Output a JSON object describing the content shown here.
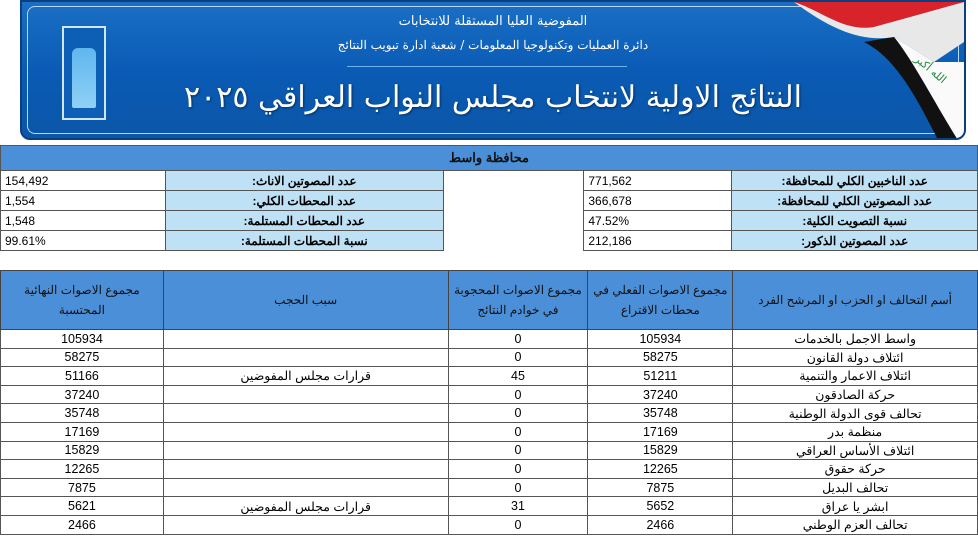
{
  "banner": {
    "org_name": "المفوضية العليا المستقلة للانتخابات",
    "department": "دائرة العمليات وتكنولوجيا المعلومات / شعبة ادارة تبويب النتائج",
    "title": "النتائج الاولية لانتخاب مجلس النواب العراقي ٢٠٢٥",
    "flag_text": "الله أكبر",
    "colors": {
      "primary": "#0a5bb5",
      "header_fill": "#4a8fd8",
      "label_fill": "#bfe1f5"
    }
  },
  "summary": {
    "province": "محافظة واسط",
    "rows": [
      {
        "r_label": "عدد الناخبين الكلي للمحافظة:",
        "r_value": "771,562",
        "l_label": "عدد المصوتين الاناث:",
        "l_value": "154,492"
      },
      {
        "r_label": "عدد المصوتين الكلي للمحافظة:",
        "r_value": "366,678",
        "l_label": "عدد المحطات الكلي:",
        "l_value": "1,554"
      },
      {
        "r_label": "نسبة التصويت الكلية:",
        "r_value": "47.52%",
        "l_label": "عدد المحطات المستلمة:",
        "l_value": "1,548"
      },
      {
        "r_label": "عدد المصوتين الذكور:",
        "r_value": "212,186",
        "l_label": "نسبة المحطات المستلمة:",
        "l_value": "99.61%"
      }
    ]
  },
  "results": {
    "headers": [
      "أسم التحالف او الحزب او المرشح الفرد",
      "مجموع الاصوات الفعلي في محطات الاقتراع",
      "مجموع الاصوات المحجوبة في خوادم النتائج",
      "سبب الحجب",
      "مجموع الاصوات النهائية المحتسبة"
    ],
    "rows": [
      [
        "واسط الاجمل بالخدمات",
        "105934",
        "0",
        "",
        "105934"
      ],
      [
        "ائتلاف دولة القانون",
        "58275",
        "0",
        "",
        "58275"
      ],
      [
        "ائتلاف الاعمار والتنمية",
        "51211",
        "45",
        "قرارات مجلس المفوضين",
        "51166"
      ],
      [
        "حركة الصادقون",
        "37240",
        "0",
        "",
        "37240"
      ],
      [
        "تحالف قوى الدولة الوطنية",
        "35748",
        "0",
        "",
        "35748"
      ],
      [
        "منظمة بدر",
        "17169",
        "0",
        "",
        "17169"
      ],
      [
        "ائتلاف الأساس العراقي",
        "15829",
        "0",
        "",
        "15829"
      ],
      [
        "حركة حقوق",
        "12265",
        "0",
        "",
        "12265"
      ],
      [
        "تحالف البديل",
        "7875",
        "0",
        "",
        "7875"
      ],
      [
        "ابشر يا عراق",
        "5652",
        "31",
        "قرارات مجلس المفوضين",
        "5621"
      ],
      [
        "تحالف العزم الوطني",
        "2466",
        "0",
        "",
        "2466"
      ]
    ]
  }
}
